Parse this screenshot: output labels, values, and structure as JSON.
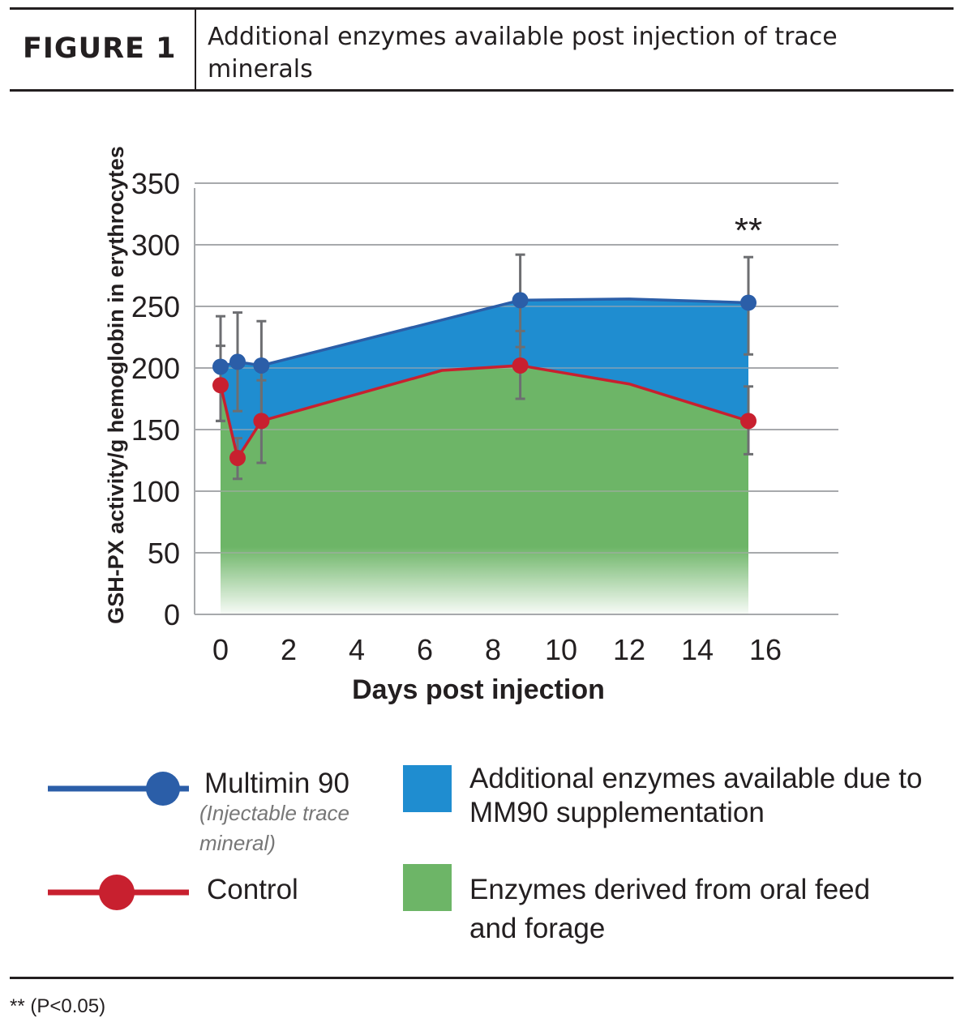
{
  "header": {
    "figure_label": "FIGURE 1",
    "title": "Additional enzymes available post injection of trace minerals"
  },
  "chart_data": {
    "type": "area",
    "title": "",
    "xlabel": "Days post injection",
    "ylabel": "GSH-PX activity/g hemoglobin in erythrocytes",
    "xlim": [
      -0.5,
      18
    ],
    "ylim": [
      0,
      350
    ],
    "x_ticks": [
      "0",
      "2",
      "4",
      "6",
      "8",
      "10",
      "12",
      "14",
      "16"
    ],
    "y_ticks": [
      "0",
      "50",
      "100",
      "150",
      "200",
      "250",
      "300",
      "350"
    ],
    "grid": "horizontal",
    "significance_marker": {
      "text": "**",
      "x": 15.5,
      "y": 315
    },
    "series": [
      {
        "name": "Multimin 90",
        "color": "#2b5ea8",
        "x": [
          0,
          0.5,
          1.2,
          8.8,
          15.5
        ],
        "y": [
          201,
          205,
          202,
          255,
          253
        ],
        "error_low": [
          157,
          165,
          160,
          217,
          211
        ],
        "error_high": [
          242,
          245,
          238,
          292,
          290
        ]
      },
      {
        "name": "Control",
        "color": "#c8202f",
        "x": [
          0,
          0.5,
          1.2,
          8.8,
          15.5
        ],
        "y": [
          186,
          127,
          157,
          202,
          157
        ],
        "error_low": [
          157,
          110,
          123,
          175,
          130
        ],
        "error_high": [
          218,
          143,
          190,
          230,
          185
        ]
      }
    ],
    "areas": [
      {
        "name": "Additional enzymes available due to MM90 supplementation",
        "color": "#1f8dd0"
      },
      {
        "name": "Enzymes derived from oral feed and forage",
        "color": "#6db567"
      }
    ]
  },
  "legend": {
    "mm90_label": "Multimin 90",
    "mm90_sublabel_1": "(Injectable trace",
    "mm90_sublabel_2": "mineral)",
    "control_label": "Control",
    "blue_area_label_1": "Additional enzymes available due to",
    "blue_area_label_2": "MM90 supplementation",
    "green_area_label_1": "Enzymes derived from oral feed",
    "green_area_label_2": "and forage"
  },
  "footnote": "** (P<0.05)"
}
